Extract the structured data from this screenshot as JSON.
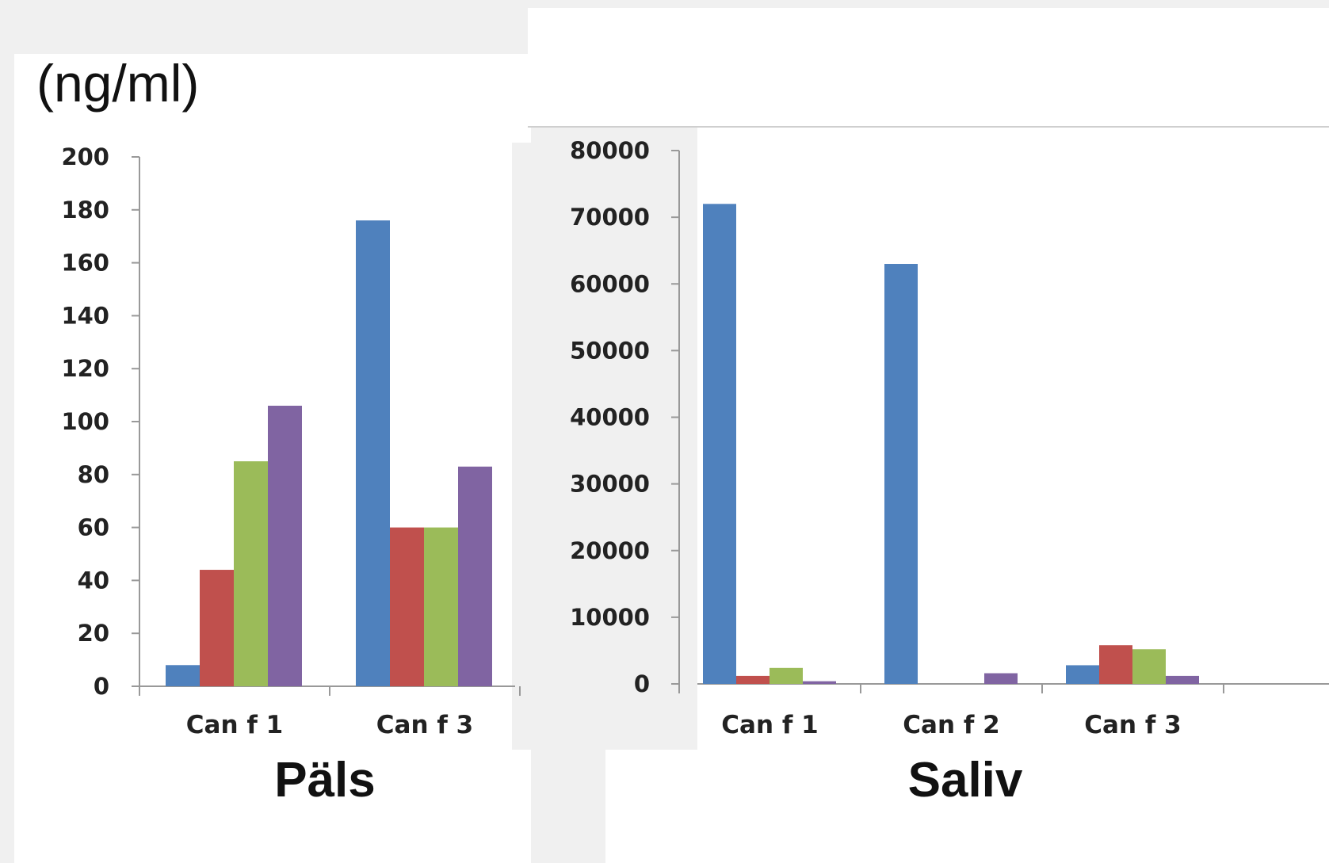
{
  "unit_label": "(ng/ml)",
  "colors": {
    "series": [
      "#4f81bd",
      "#c0504d",
      "#9bbb59",
      "#8064a2"
    ],
    "axis": "#999999"
  },
  "chart_data": [
    {
      "type": "bar",
      "xlabel": "Päls",
      "ylabel": "",
      "categories": [
        "Can f 1",
        "Can f 3"
      ],
      "ylim": [
        0,
        200
      ],
      "yticks": [
        "0",
        "20",
        "40",
        "60",
        "80",
        "100",
        "120",
        "140",
        "160",
        "180",
        "200"
      ],
      "series": [
        {
          "values": [
            8,
            176
          ]
        },
        {
          "values": [
            44,
            60
          ]
        },
        {
          "values": [
            85,
            60
          ]
        },
        {
          "values": [
            106,
            83
          ]
        }
      ]
    },
    {
      "type": "bar",
      "xlabel": "Saliv",
      "ylabel": "",
      "categories": [
        "Can f 1",
        "Can f 2",
        "Can f 3"
      ],
      "ylim": [
        0,
        80000
      ],
      "yticks": [
        "0",
        "10000",
        "20000",
        "30000",
        "40000",
        "50000",
        "60000",
        "70000",
        "80000"
      ],
      "series": [
        {
          "values": [
            72000,
            63000,
            2800
          ]
        },
        {
          "values": [
            1200,
            0,
            5800
          ]
        },
        {
          "values": [
            2400,
            0,
            5200
          ]
        },
        {
          "values": [
            400,
            1600,
            1200
          ]
        }
      ]
    }
  ]
}
